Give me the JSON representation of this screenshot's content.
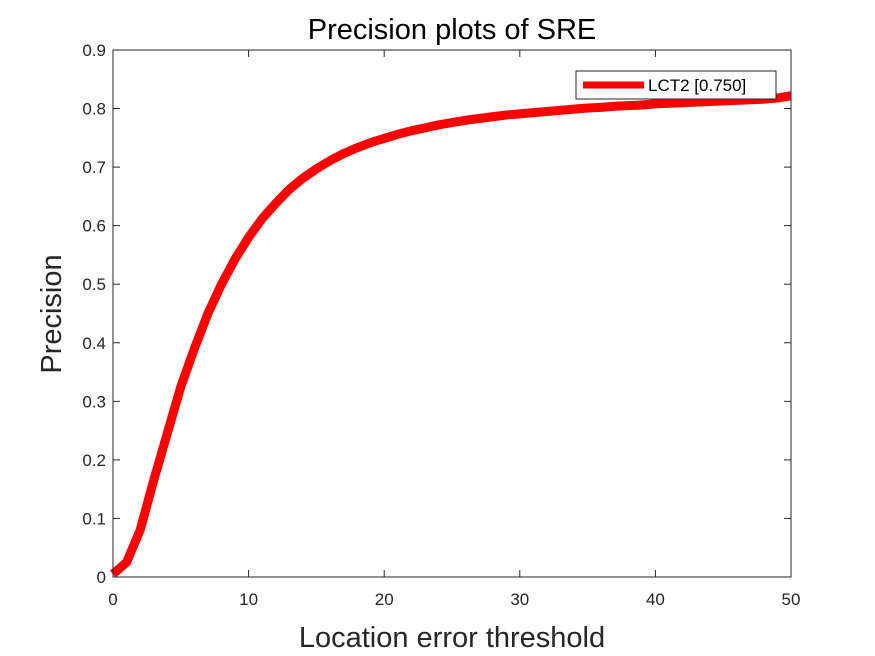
{
  "chart_data": {
    "type": "line",
    "title": "Precision plots of SRE",
    "xlabel": "Location error threshold",
    "ylabel": "Precision",
    "xlim": [
      0,
      50
    ],
    "ylim": [
      0,
      0.9
    ],
    "xticks": [
      "0",
      "10",
      "20",
      "30",
      "40",
      "50"
    ],
    "yticks": [
      "0",
      "0.1",
      "0.2",
      "0.3",
      "0.4",
      "0.5",
      "0.6",
      "0.7",
      "0.8",
      "0.9"
    ],
    "grid": false,
    "legend_position": "top-right",
    "series": [
      {
        "name": "LCT2 [0.750]",
        "color": "#ff0000",
        "x": [
          0,
          1,
          2,
          3,
          4,
          5,
          6,
          7,
          8,
          9,
          10,
          11,
          12,
          13,
          14,
          15,
          16,
          17,
          18,
          19,
          20,
          21,
          22,
          23,
          24,
          25,
          26,
          27,
          28,
          29,
          30,
          31,
          32,
          33,
          34,
          35,
          36,
          37,
          38,
          39,
          40,
          41,
          42,
          43,
          44,
          45,
          46,
          47,
          48,
          49,
          50
        ],
        "y": [
          0.005,
          0.025,
          0.08,
          0.165,
          0.245,
          0.325,
          0.39,
          0.45,
          0.5,
          0.543,
          0.58,
          0.612,
          0.638,
          0.662,
          0.681,
          0.697,
          0.711,
          0.723,
          0.733,
          0.742,
          0.749,
          0.756,
          0.762,
          0.767,
          0.772,
          0.776,
          0.78,
          0.783,
          0.786,
          0.789,
          0.791,
          0.793,
          0.795,
          0.797,
          0.799,
          0.801,
          0.802,
          0.804,
          0.805,
          0.806,
          0.808,
          0.809,
          0.81,
          0.811,
          0.812,
          0.813,
          0.814,
          0.815,
          0.816,
          0.818,
          0.822
        ]
      }
    ]
  }
}
